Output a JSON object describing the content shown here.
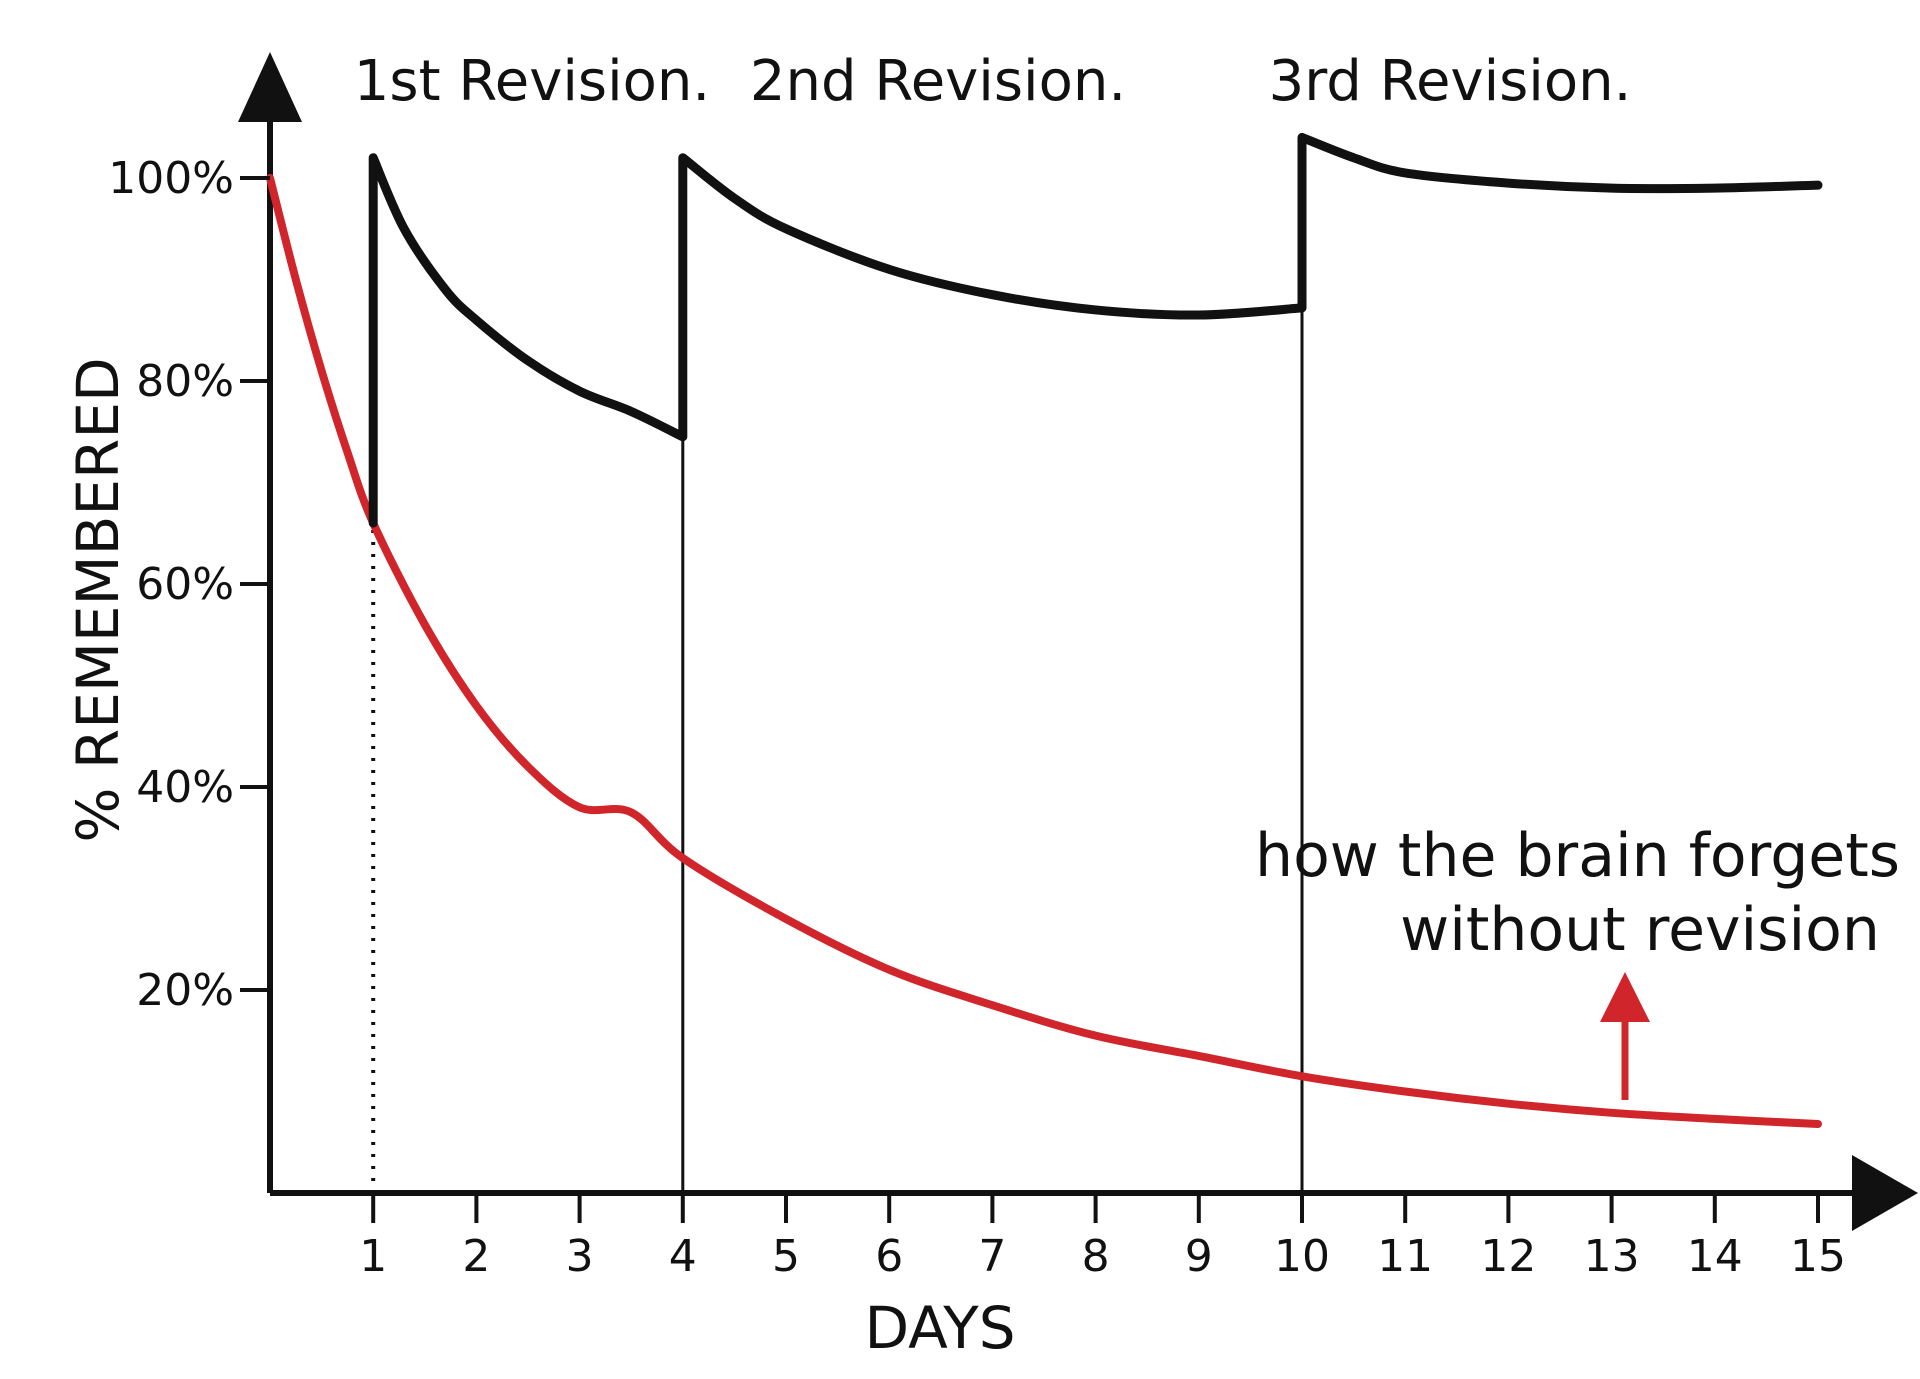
{
  "chart_data": {
    "type": "line",
    "xlabel": "DAYS",
    "ylabel": "% REMEMBERED",
    "x_ticks": [
      "1",
      "2",
      "3",
      "4",
      "5",
      "6",
      "7",
      "8",
      "9",
      "10",
      "11",
      "12",
      "13",
      "14",
      "15"
    ],
    "y_ticks": [
      "20%",
      "40%",
      "60%",
      "80%",
      "100%"
    ],
    "y_tick_values": [
      20,
      40,
      60,
      80,
      100
    ],
    "xlim": [
      0,
      15
    ],
    "ylim": [
      0,
      100
    ],
    "grid": false,
    "revision_labels": [
      {
        "text": "1st Revision.",
        "day": 1
      },
      {
        "text": "2nd Revision.",
        "day": 4
      },
      {
        "text": "3rd Revision.",
        "day": 10
      }
    ],
    "annotation": {
      "lines": [
        "how the brain forgets",
        "without revision"
      ],
      "points_to_series": "forgetting"
    },
    "series": [
      {
        "id": "forgetting",
        "color": "#d0262b",
        "points": [
          [
            0,
            100
          ],
          [
            0.25,
            90
          ],
          [
            0.5,
            81
          ],
          [
            0.75,
            73
          ],
          [
            1,
            66
          ],
          [
            1.5,
            56
          ],
          [
            2,
            48
          ],
          [
            2.5,
            42
          ],
          [
            3,
            38
          ],
          [
            3.5,
            37.5
          ],
          [
            4,
            33
          ],
          [
            5,
            27
          ],
          [
            6,
            22
          ],
          [
            7,
            18.5
          ],
          [
            8,
            15.5
          ],
          [
            9,
            13.5
          ],
          [
            10,
            11.5
          ],
          [
            11,
            10
          ],
          [
            12,
            8.8
          ],
          [
            13,
            7.9
          ],
          [
            14,
            7.3
          ],
          [
            15,
            6.8
          ]
        ]
      },
      {
        "id": "with-revision",
        "color": "#111111",
        "points": [
          [
            1,
            66
          ],
          [
            1,
            102
          ],
          [
            1.3,
            95
          ],
          [
            1.7,
            89
          ],
          [
            2,
            86
          ],
          [
            2.5,
            82
          ],
          [
            3,
            79
          ],
          [
            3.5,
            77
          ],
          [
            4,
            74.5
          ],
          [
            4,
            102
          ],
          [
            4.5,
            98
          ],
          [
            5,
            95
          ],
          [
            6,
            91
          ],
          [
            7,
            88.5
          ],
          [
            8,
            87
          ],
          [
            9,
            86.5
          ],
          [
            10,
            87.2
          ],
          [
            10,
            104
          ],
          [
            10.5,
            102
          ],
          [
            11,
            100.5
          ],
          [
            12,
            99.5
          ],
          [
            13,
            99
          ],
          [
            14,
            99
          ],
          [
            15,
            99.3
          ]
        ]
      }
    ],
    "revision_guides": [
      {
        "day": 1,
        "from": 0,
        "to": 66,
        "style": "dotted"
      },
      {
        "day": 4,
        "from": 0,
        "to": 74.5,
        "style": "solid"
      },
      {
        "day": 10,
        "from": 0,
        "to": 87.2,
        "style": "solid"
      }
    ]
  }
}
